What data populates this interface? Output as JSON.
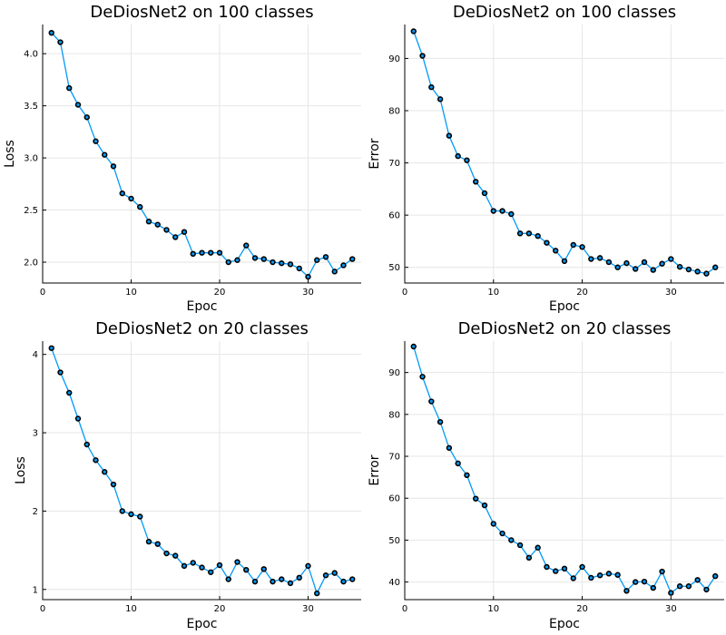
{
  "chart_data": [
    {
      "type": "line",
      "title": "DeDiosNet2 on 100 classes",
      "xlabel": "Epoc",
      "ylabel": "Loss",
      "xlim": [
        0,
        36
      ],
      "ylim": [
        1.8,
        4.28
      ],
      "xticks": [
        0,
        10,
        20,
        30
      ],
      "yticks": [
        2.0,
        2.5,
        3.0,
        3.5,
        4.0
      ],
      "ytick_labels": [
        "2.0",
        "2.5",
        "3.0",
        "3.5",
        "4.0"
      ],
      "grid": true,
      "color": "#009af9",
      "x": [
        1,
        2,
        3,
        4,
        5,
        6,
        7,
        8,
        9,
        10,
        11,
        12,
        13,
        14,
        15,
        16,
        17,
        18,
        19,
        20,
        21,
        22,
        23,
        24,
        25,
        26,
        27,
        28,
        29,
        30,
        31,
        32,
        33,
        34,
        35
      ],
      "values": [
        4.2,
        4.11,
        3.67,
        3.51,
        3.39,
        3.16,
        3.03,
        2.92,
        2.66,
        2.61,
        2.53,
        2.39,
        2.36,
        2.31,
        2.24,
        2.29,
        2.08,
        2.09,
        2.09,
        2.09,
        2.0,
        2.02,
        2.16,
        2.04,
        2.03,
        2.0,
        1.99,
        1.98,
        1.94,
        1.86,
        2.02,
        2.05,
        1.91,
        1.97,
        2.03
      ]
    },
    {
      "type": "line",
      "title": "DeDiosNet2 on 100 classes",
      "xlabel": "Epoc",
      "ylabel": "Error",
      "xlim": [
        0,
        36
      ],
      "ylim": [
        47,
        96.5
      ],
      "xticks": [
        0,
        10,
        20,
        30
      ],
      "yticks": [
        50,
        60,
        70,
        80,
        90
      ],
      "ytick_labels": [
        "50",
        "60",
        "70",
        "80",
        "90"
      ],
      "grid": true,
      "color": "#009af9",
      "x": [
        1,
        2,
        3,
        4,
        5,
        6,
        7,
        8,
        9,
        10,
        11,
        12,
        13,
        14,
        15,
        16,
        17,
        18,
        19,
        20,
        21,
        22,
        23,
        24,
        25,
        26,
        27,
        28,
        29,
        30,
        31,
        32,
        33,
        34,
        35
      ],
      "values": [
        95.2,
        90.5,
        84.5,
        82.2,
        75.2,
        71.3,
        70.5,
        66.4,
        64.2,
        60.8,
        60.8,
        60.2,
        56.5,
        56.5,
        56.0,
        54.7,
        53.2,
        51.2,
        54.3,
        53.9,
        51.6,
        51.8,
        51.0,
        50.0,
        50.8,
        49.7,
        51.0,
        49.5,
        50.7,
        51.6,
        50.1,
        49.6,
        49.2,
        48.8,
        50.0
      ]
    },
    {
      "type": "line",
      "title": "DeDiosNet2 on 20 classes",
      "xlabel": "Epoc",
      "ylabel": "Loss",
      "xlim": [
        0,
        36
      ],
      "ylim": [
        0.87,
        4.17
      ],
      "xticks": [
        0,
        10,
        20,
        30
      ],
      "yticks": [
        1,
        2,
        3,
        4
      ],
      "ytick_labels": [
        "1",
        "2",
        "3",
        "4"
      ],
      "grid": true,
      "color": "#009af9",
      "x": [
        1,
        2,
        3,
        4,
        5,
        6,
        7,
        8,
        9,
        10,
        11,
        12,
        13,
        14,
        15,
        16,
        17,
        18,
        19,
        20,
        21,
        22,
        23,
        24,
        25,
        26,
        27,
        28,
        29,
        30,
        31,
        32,
        33,
        34,
        35
      ],
      "values": [
        4.08,
        3.77,
        3.51,
        3.18,
        2.85,
        2.65,
        2.5,
        2.34,
        2.0,
        1.96,
        1.93,
        1.61,
        1.58,
        1.46,
        1.43,
        1.3,
        1.34,
        1.28,
        1.22,
        1.31,
        1.13,
        1.35,
        1.25,
        1.1,
        1.26,
        1.1,
        1.13,
        1.08,
        1.15,
        1.3,
        0.95,
        1.18,
        1.21,
        1.1,
        1.13
      ]
    },
    {
      "type": "line",
      "title": "DeDiosNet2 on 20 classes",
      "xlabel": "Epoc",
      "ylabel": "Error",
      "xlim": [
        0,
        36
      ],
      "ylim": [
        35.8,
        97.5
      ],
      "xticks": [
        0,
        10,
        20,
        30
      ],
      "yticks": [
        40,
        50,
        60,
        70,
        80,
        90
      ],
      "ytick_labels": [
        "40",
        "50",
        "60",
        "70",
        "80",
        "90"
      ],
      "grid": true,
      "color": "#009af9",
      "x": [
        1,
        2,
        3,
        4,
        5,
        6,
        7,
        8,
        9,
        10,
        11,
        12,
        13,
        14,
        15,
        16,
        17,
        18,
        19,
        20,
        21,
        22,
        23,
        24,
        25,
        26,
        27,
        28,
        29,
        30,
        31,
        32,
        33,
        34,
        35
      ],
      "values": [
        96.2,
        89.0,
        83.1,
        78.2,
        72.0,
        68.3,
        65.5,
        59.9,
        58.3,
        53.9,
        51.6,
        50.0,
        48.8,
        45.8,
        48.2,
        43.6,
        42.6,
        43.2,
        40.9,
        43.6,
        41.0,
        41.6,
        42.0,
        41.7,
        37.9,
        40.0,
        40.1,
        38.6,
        42.5,
        37.4,
        39.0,
        39.0,
        40.5,
        38.2,
        41.4
      ]
    }
  ]
}
